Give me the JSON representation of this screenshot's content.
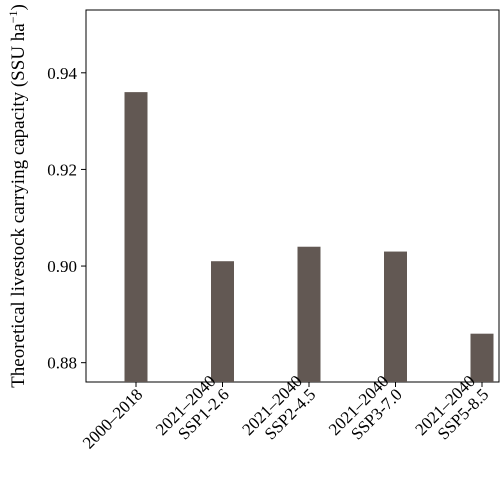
{
  "chart_data": {
    "type": "bar",
    "title": "",
    "xlabel": "",
    "ylabel": "Theoretical livestock carrying capacity (SSU ha",
    "ylabel_sup": "−1",
    "ylabel_close": ")",
    "categories": [
      [
        "2000–2018"
      ],
      [
        "2021–2040",
        "SSP1-2.6"
      ],
      [
        "2021–2040",
        "SSP2-4.5"
      ],
      [
        "2021–2040",
        "SSP3-7.0"
      ],
      [
        "2021–2040",
        "SSP5-8.5"
      ]
    ],
    "values": [
      0.936,
      0.901,
      0.904,
      0.903,
      0.886
    ],
    "ylim": [
      0.876,
      0.953
    ],
    "yticks": [
      0.88,
      0.9,
      0.92,
      0.94
    ],
    "ytick_labels": [
      "0.88",
      "0.90",
      "0.92",
      "0.94"
    ],
    "grid": false,
    "bar_color": "#625853"
  }
}
